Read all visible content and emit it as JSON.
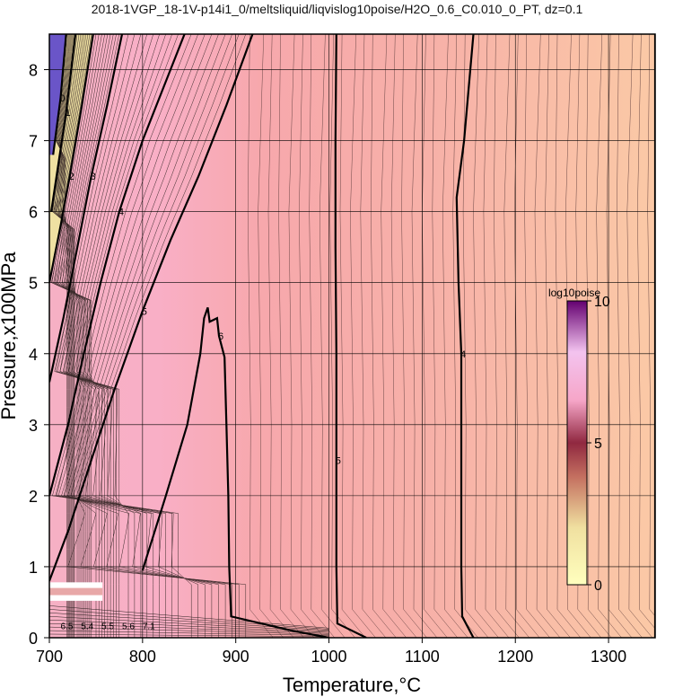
{
  "title": "2018-1VGP_18-1V-p14i1_0/meltsliquid/liqvislog10poise/H2O_0.6_C0.010_0_PT, dz=0.1",
  "chart_data": {
    "type": "heatmap",
    "title": "2018-1VGP_18-1V-p14i1_0/meltsliquid/liqvislog10poise/H2O_0.6_C0.010_0_PT, dz=0.1",
    "xlabel": "Temperature,°C",
    "ylabel": "Pressure,x100MPa",
    "xlim": [
      700,
      1350
    ],
    "ylim": [
      0,
      8.5
    ],
    "x_ticks": [
      700,
      800,
      900,
      1000,
      1100,
      1200,
      1300
    ],
    "x_tick_labels": [
      "700",
      "800",
      "900",
      "1000",
      "1100",
      "1200",
      "1300"
    ],
    "y_ticks": [
      0,
      1,
      2,
      3,
      4,
      5,
      6,
      7,
      8
    ],
    "y_tick_labels": [
      "0",
      "1",
      "2",
      "3",
      "4",
      "5",
      "6",
      "7",
      "8"
    ],
    "grid": true,
    "colorbar": {
      "label": "log10poise",
      "range": [
        0,
        10
      ],
      "ticks": [
        0,
        5,
        10
      ],
      "tick_labels": [
        "0",
        "5",
        "10"
      ],
      "placement": "right-inside"
    },
    "contour_interval": 0.1,
    "major_contours": [
      {
        "level": 5,
        "label": "5",
        "points": [
          [
            1008,
            8.5
          ],
          [
            1007,
            7.0
          ],
          [
            1007,
            5.5
          ],
          [
            1008,
            4.0
          ],
          [
            1008,
            2.5
          ],
          [
            1008,
            1.0
          ],
          [
            1009,
            0.2
          ],
          [
            1040,
            0.0
          ]
        ]
      },
      {
        "level": 4,
        "label": "4",
        "points": [
          [
            1155,
            8.5
          ],
          [
            1145,
            7.0
          ],
          [
            1137,
            6.2
          ],
          [
            1139,
            5.0
          ],
          [
            1142,
            4.0
          ],
          [
            1142,
            2.5
          ],
          [
            1142,
            1.0
          ],
          [
            1143,
            0.3
          ],
          [
            1155,
            0.0
          ]
        ]
      },
      {
        "level": 3,
        "label": "3",
        "points": [
          [
            1350,
            8.5
          ],
          [
            1350,
            0.0
          ]
        ]
      },
      {
        "level": 6,
        "label": "6",
        "points": [
          [
            800,
            0.95
          ],
          [
            825,
            2.0
          ],
          [
            848,
            3.0
          ],
          [
            862,
            4.0
          ],
          [
            866,
            4.5
          ],
          [
            870,
            4.65
          ],
          [
            872,
            4.45
          ],
          [
            880,
            4.5
          ],
          [
            882,
            4.25
          ],
          [
            888,
            3.95
          ],
          [
            890,
            3.0
          ],
          [
            892,
            2.0
          ],
          [
            893,
            1.0
          ],
          [
            895,
            0.3
          ],
          [
            960,
            0.1
          ],
          [
            1000,
            0.0
          ]
        ]
      },
      {
        "level": 5,
        "label": "5",
        "points": [
          [
            700,
            0.8
          ],
          [
            720,
            1.5
          ],
          [
            745,
            2.5
          ],
          [
            770,
            3.5
          ],
          [
            800,
            4.6
          ],
          [
            830,
            5.6
          ],
          [
            860,
            6.5
          ],
          [
            890,
            7.5
          ],
          [
            918,
            8.5
          ]
        ]
      },
      {
        "level": 4,
        "label": "4",
        "points": [
          [
            700,
            2.0
          ],
          [
            720,
            3.0
          ],
          [
            737,
            4.0
          ],
          [
            755,
            5.0
          ],
          [
            775,
            6.0
          ],
          [
            800,
            7.0
          ],
          [
            830,
            8.0
          ],
          [
            845,
            8.5
          ]
        ]
      },
      {
        "level": 3,
        "label": "3",
        "points": [
          [
            700,
            3.6
          ],
          [
            715,
            4.5
          ],
          [
            730,
            5.5
          ],
          [
            745,
            6.5
          ],
          [
            762,
            7.5
          ],
          [
            778,
            8.5
          ]
        ]
      },
      {
        "level": 2,
        "label": "2",
        "points": [
          [
            700,
            5.0
          ],
          [
            712,
            5.8
          ],
          [
            722,
            6.5
          ],
          [
            735,
            7.5
          ],
          [
            747,
            8.5
          ]
        ]
      },
      {
        "level": 1,
        "label": "1",
        "points": [
          [
            702,
            6.0
          ],
          [
            710,
            6.7
          ],
          [
            718,
            7.4
          ],
          [
            728,
            8.5
          ]
        ]
      },
      {
        "level": 0,
        "label": "0",
        "points": [
          [
            704,
            6.8
          ],
          [
            712,
            7.6
          ],
          [
            718,
            8.5
          ]
        ]
      }
    ],
    "low_pressure_labels": [
      "6.5",
      "5.4",
      "5.5",
      "5.6",
      "7.1"
    ],
    "masked_regions": [
      {
        "x": [
          700,
          757
        ],
        "y": [
          0.52,
          0.78
        ]
      }
    ],
    "colormap_samples": [
      {
        "value": 0,
        "color": "#ffffc8"
      },
      {
        "value": 2.5,
        "color": "#e8d0a0"
      },
      {
        "value": 5,
        "color": "#a03040"
      },
      {
        "value": 7.5,
        "color": "#f0b0e0"
      },
      {
        "value": 10,
        "color": "#500060"
      }
    ]
  }
}
